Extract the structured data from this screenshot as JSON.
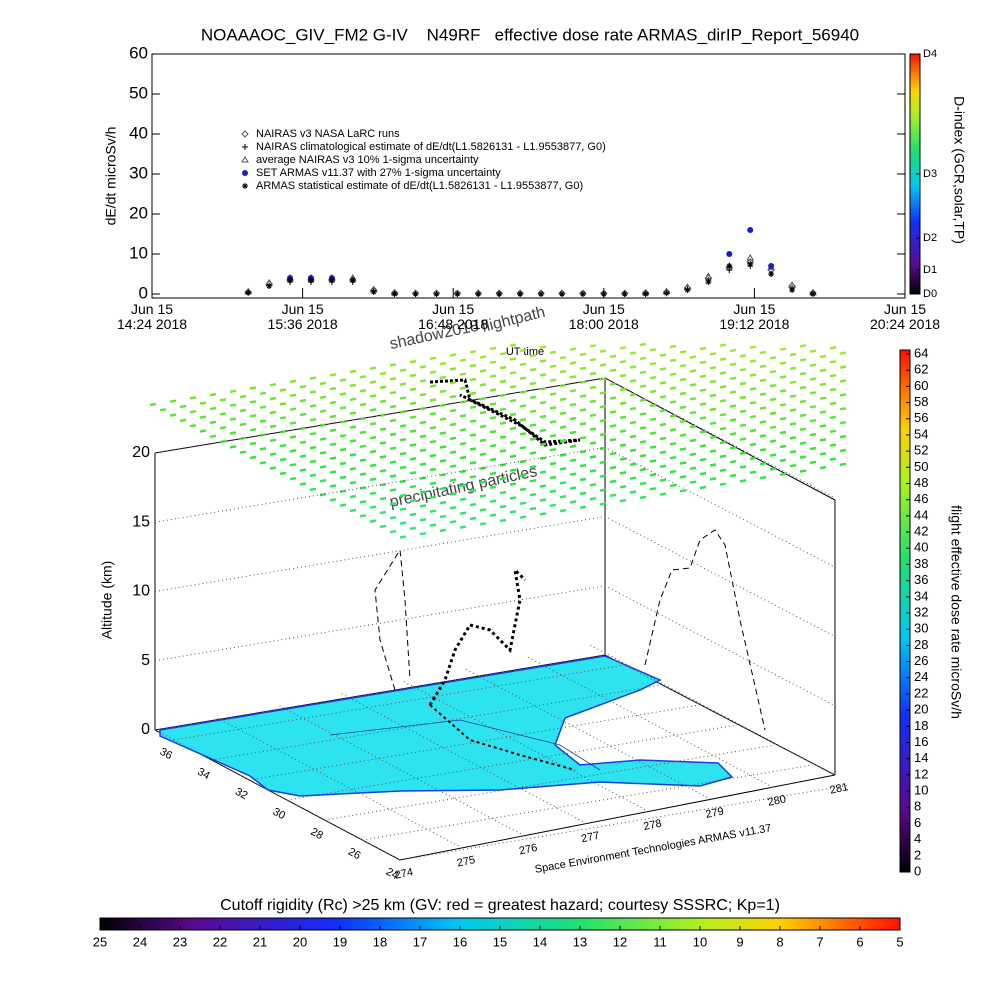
{
  "chart_data": [
    {
      "type": "line",
      "title": "NOAAAOC_GIV_FM2 G-IV    N49RF   effective dose rate ARMAS_dirIP_Report_56940",
      "ylabel": "dE/dt microSv/h",
      "xlabel": "UT time",
      "x": [
        "2018-06-15T15:10",
        "2018-06-15T15:20",
        "2018-06-15T15:30",
        "2018-06-15T15:40",
        "2018-06-15T15:50",
        "2018-06-15T16:00",
        "2018-06-15T16:10",
        "2018-06-15T16:20",
        "2018-06-15T16:30",
        "2018-06-15T16:40",
        "2018-06-15T16:50",
        "2018-06-15T17:00",
        "2018-06-15T17:10",
        "2018-06-15T17:20",
        "2018-06-15T17:30",
        "2018-06-15T17:40",
        "2018-06-15T17:50",
        "2018-06-15T18:00",
        "2018-06-15T18:10",
        "2018-06-15T18:20",
        "2018-06-15T18:30",
        "2018-06-15T18:40",
        "2018-06-15T18:50",
        "2018-06-15T19:00",
        "2018-06-15T19:10",
        "2018-06-15T19:20",
        "2018-06-15T19:30",
        "2018-06-15T19:40"
      ],
      "series": [
        {
          "name": "NAIRAS v3 NASA LaRC runs",
          "color": "#555555",
          "marker": "diamond",
          "values": [
            0.5,
            2.5,
            3.5,
            3.5,
            3.5,
            3.5,
            1,
            0.3,
            0.2,
            0.2,
            0.2,
            0.2,
            0.2,
            0.2,
            0.2,
            0.2,
            0.2,
            0.2,
            0.2,
            0.3,
            0.5,
            1.5,
            4,
            6.5,
            8,
            6,
            2,
            0.3
          ]
        },
        {
          "name": "NAIRAS climatological estimate of dE/dt(L1.5826131 - L1.9553877, G0)",
          "color": "#000000",
          "marker": "plus",
          "values": [
            0.4,
            2,
            3,
            3,
            3,
            3,
            0.8,
            0.2,
            0,
            0,
            0,
            0,
            0,
            0,
            0,
            0,
            0,
            0,
            0,
            0.2,
            0.4,
            1.2,
            3.5,
            6,
            7,
            5,
            1.5,
            0.2
          ]
        },
        {
          "name": "average NAIRAS v3 10% 1-sigma uncertainty",
          "color": "#555555",
          "marker": "triangle",
          "values": [
            0.6,
            2.8,
            4,
            4,
            4,
            4,
            1.1,
            0.3,
            null,
            null,
            null,
            null,
            null,
            null,
            null,
            null,
            null,
            null,
            null,
            0.3,
            0.6,
            1.7,
            4.4,
            7,
            9,
            6.6,
            2.2,
            0.3
          ]
        },
        {
          "name": "SET ARMAS v11.37 with 27% 1-sigma uncertainty",
          "color": "#1a1ad0",
          "marker": "circle",
          "values": [
            null,
            null,
            4,
            4,
            4,
            null,
            null,
            null,
            null,
            null,
            null,
            null,
            null,
            null,
            null,
            null,
            null,
            null,
            null,
            null,
            null,
            null,
            null,
            10,
            16,
            7,
            null,
            null
          ]
        },
        {
          "name": "ARMAS statistical estimate of dE/dt(L1.5826131 - L1.9553877, G0)",
          "color": "#000000",
          "marker": "star",
          "values": [
            0.3,
            2,
            3.5,
            3.5,
            3.5,
            3.5,
            0.5,
            0,
            0,
            0,
            0,
            0,
            0,
            0,
            0,
            0,
            0,
            0,
            0,
            0,
            0.2,
            1,
            3,
            7,
            7.5,
            5,
            1,
            0
          ]
        }
      ],
      "xlim": [
        "2018-06-15T14:24",
        "2018-06-15T20:24"
      ],
      "xticks": [
        {
          "value": "2018-06-15T14:24",
          "label": "Jun 15\n14:24 2018"
        },
        {
          "value": "2018-06-15T15:36",
          "label": "Jun 15\n15:36 2018"
        },
        {
          "value": "2018-06-15T16:48",
          "label": "Jun 15\n16:48 2018"
        },
        {
          "value": "2018-06-15T18:00",
          "label": "Jun 15\n18:00 2018"
        },
        {
          "value": "2018-06-15T19:12",
          "label": "Jun 15\n19:12 2018"
        },
        {
          "value": "2018-06-15T20:24",
          "label": "Jun 15\n20:24 2018"
        }
      ],
      "ylim": [
        0,
        60
      ],
      "yticks": [
        0,
        10,
        20,
        30,
        40,
        50,
        60
      ],
      "colorbar": {
        "label": "D-index (GCR,solar,TP)",
        "ticks": [
          {
            "value": 0,
            "label": "D0"
          },
          {
            "value": 6,
            "label": "D1"
          },
          {
            "value": 14,
            "label": "D2"
          },
          {
            "value": 30,
            "label": "D3"
          },
          {
            "value": 60,
            "label": "D4"
          }
        ]
      }
    },
    {
      "type": "surface3d",
      "zlabel": "Altitude (km)",
      "zlim": [
        0,
        20
      ],
      "zticks": [
        0,
        5,
        10,
        15,
        20
      ],
      "ylim": [
        37,
        24
      ],
      "yticks": [
        36,
        34,
        32,
        30,
        28,
        26,
        24
      ],
      "xlim": [
        274,
        281
      ],
      "xticks": [
        274,
        275,
        276,
        277,
        278,
        279,
        280,
        281
      ],
      "annotations": [
        "shadow2018",
        "flightpath",
        "precipitating particles",
        "Space Environment Technologies ARMAS v11.37"
      ]
    },
    {
      "type": "colorbar",
      "orientation": "vertical",
      "label": "flight effective dose rate microSv/h",
      "lim": [
        0,
        64
      ],
      "ticks": [
        0,
        2,
        4,
        6,
        8,
        10,
        12,
        14,
        16,
        18,
        20,
        22,
        24,
        26,
        28,
        30,
        32,
        34,
        36,
        38,
        40,
        42,
        44,
        46,
        48,
        50,
        52,
        54,
        56,
        58,
        60,
        62,
        64
      ]
    },
    {
      "type": "colorbar",
      "orientation": "horizontal",
      "label": "Cutoff rigidity (Rc) >25 km (GV: red = greatest hazard; courtesy SSSRC; Kp=1)",
      "lim": [
        25,
        5
      ],
      "ticks": [
        25,
        24,
        23,
        22,
        21,
        20,
        19,
        18,
        17,
        16,
        15,
        14,
        13,
        12,
        11,
        10,
        9,
        8,
        7,
        6,
        5
      ]
    }
  ]
}
